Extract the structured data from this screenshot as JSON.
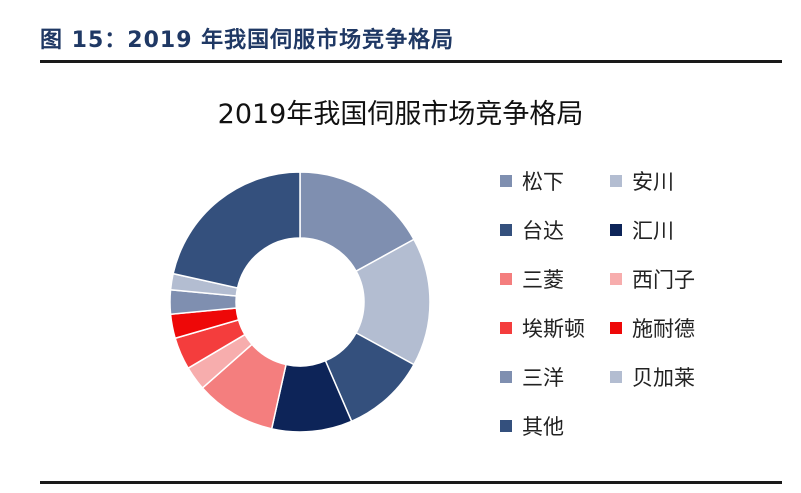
{
  "caption": "图 15：2019 年我国伺服市场竞争格局",
  "chart_data": {
    "type": "pie",
    "title": "2019年我国伺服市场竞争格局",
    "donut": true,
    "legend_position": "right",
    "series": [
      {
        "name": "松下",
        "value": 17.0,
        "color": "#7f8fb0"
      },
      {
        "name": "安川",
        "value": 16.0,
        "color": "#b3bdd1"
      },
      {
        "name": "台达",
        "value": 10.5,
        "color": "#34507d"
      },
      {
        "name": "汇川",
        "value": 10.0,
        "color": "#0d2458"
      },
      {
        "name": "三菱",
        "value": 10.0,
        "color": "#f47e7e"
      },
      {
        "name": "西门子",
        "value": 3.0,
        "color": "#f7adad"
      },
      {
        "name": "埃斯顿",
        "value": 4.0,
        "color": "#f43d3d"
      },
      {
        "name": "施耐德",
        "value": 3.0,
        "color": "#ee0808"
      },
      {
        "name": "三洋",
        "value": 3.0,
        "color": "#7f8fb0"
      },
      {
        "name": "贝加莱",
        "value": 2.0,
        "color": "#b3bdd1"
      },
      {
        "name": "其他",
        "value": 21.5,
        "color": "#34507d"
      }
    ]
  }
}
